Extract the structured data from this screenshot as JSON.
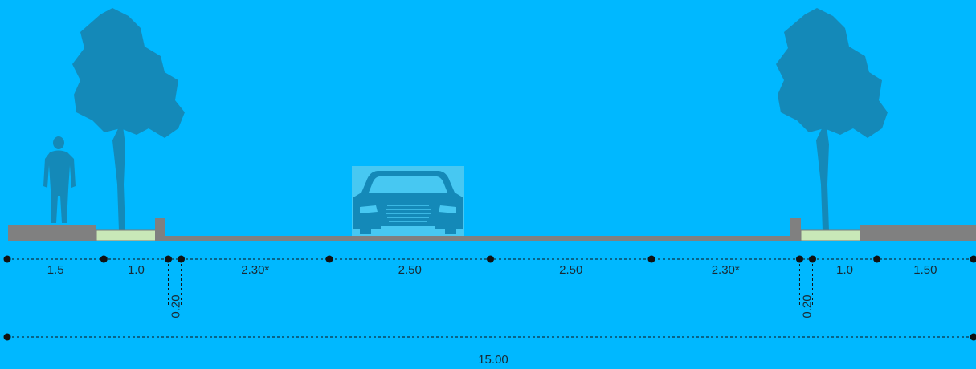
{
  "colors": {
    "background": "#00B8FF",
    "pavement": "#808080",
    "planting_strip": "#C9E8B8",
    "silhouette": "#1489B8",
    "car_box": "#47C8F2",
    "dimension_line": "#111111"
  },
  "icons": {
    "pedestrian": "person-icon",
    "tree_left": "tree-icon",
    "tree_right": "tree-icon",
    "vehicle": "car-icon"
  },
  "segments": [
    {
      "value": 1.5,
      "label": "1.5"
    },
    {
      "value": 1.0,
      "label": "1.0"
    },
    {
      "value": 0.2,
      "label": ""
    },
    {
      "value": 2.3,
      "label": "2.30*"
    },
    {
      "value": 2.5,
      "label": "2.50"
    },
    {
      "value": 2.5,
      "label": "2.50"
    },
    {
      "value": 2.3,
      "label": "2.30*"
    },
    {
      "value": 0.2,
      "label": ""
    },
    {
      "value": 1.0,
      "label": "1.0"
    },
    {
      "value": 1.5,
      "label": "1.50"
    }
  ],
  "curbs": {
    "left_label": "0.20",
    "right_label": "0.20"
  },
  "total": {
    "label": "15.00"
  }
}
